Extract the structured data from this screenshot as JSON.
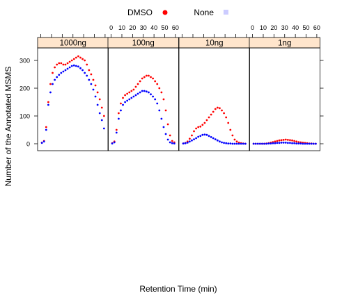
{
  "chart_data": {
    "type": "scatter",
    "title": "",
    "xlabel": "Retention Time (min)",
    "ylabel": "Number of the Annotated MSMS",
    "xlim": [
      -3,
      63
    ],
    "ylim": [
      -25,
      345
    ],
    "x_ticks": [
      0,
      10,
      20,
      30,
      40,
      50,
      60
    ],
    "y_ticks": [
      0,
      100,
      200,
      300
    ],
    "legend": {
      "placement": "top",
      "entries": [
        {
          "label": "DMSO",
          "color": "#ff0000",
          "marker": "filled-circle"
        },
        {
          "label": "None",
          "color": "#ccccff",
          "marker": "square"
        }
      ]
    },
    "panels": [
      {
        "label": "1000ng",
        "series": [
          {
            "name": "DMSO",
            "color": "#ff0000",
            "x": [
              1,
              3,
              5,
              7,
              9,
              11,
              13,
              15,
              17,
              19,
              21,
              23,
              25,
              27,
              29,
              31,
              33,
              35,
              37,
              39,
              41,
              43,
              45,
              47,
              49,
              51,
              53,
              55,
              57,
              59
            ],
            "y": [
              4,
              10,
              60,
              150,
              215,
              255,
              275,
              285,
              290,
              290,
              285,
              285,
              290,
              295,
              300,
              305,
              310,
              315,
              310,
              305,
              300,
              285,
              265,
              250,
              230,
              210,
              185,
              160,
              130,
              100
            ]
          },
          {
            "name": "None",
            "color": "#0000ff",
            "x": [
              1,
              3,
              5,
              7,
              9,
              11,
              13,
              15,
              17,
              19,
              21,
              23,
              25,
              27,
              29,
              31,
              33,
              35,
              37,
              39,
              41,
              43,
              45,
              47,
              49,
              51,
              53,
              55,
              57,
              59
            ],
            "y": [
              3,
              8,
              50,
              140,
              185,
              215,
              230,
              240,
              248,
              255,
              260,
              265,
              270,
              275,
              280,
              282,
              280,
              278,
              272,
              265,
              255,
              245,
              230,
              215,
              195,
              170,
              140,
              110,
              85,
              55
            ]
          }
        ]
      },
      {
        "label": "100ng",
        "series": [
          {
            "name": "DMSO",
            "color": "#ff0000",
            "x": [
              1,
              3,
              5,
              7,
              9,
              11,
              13,
              15,
              17,
              19,
              21,
              23,
              25,
              27,
              29,
              31,
              33,
              35,
              37,
              39,
              41,
              43,
              45,
              47,
              49,
              51,
              53,
              55,
              57,
              59
            ],
            "y": [
              2,
              8,
              50,
              110,
              145,
              165,
              175,
              180,
              185,
              190,
              195,
              205,
              215,
              225,
              235,
              240,
              245,
              245,
              240,
              235,
              225,
              215,
              200,
              185,
              160,
              120,
              70,
              30,
              10,
              5
            ]
          },
          {
            "name": "None",
            "color": "#0000ff",
            "x": [
              1,
              3,
              5,
              7,
              9,
              11,
              13,
              15,
              17,
              19,
              21,
              23,
              25,
              27,
              29,
              31,
              33,
              35,
              37,
              39,
              41,
              43,
              45,
              47,
              49,
              51,
              53,
              55,
              57,
              59
            ],
            "y": [
              1,
              5,
              40,
              90,
              120,
              140,
              150,
              155,
              160,
              165,
              170,
              175,
              180,
              185,
              190,
              190,
              188,
              185,
              178,
              170,
              160,
              145,
              120,
              90,
              60,
              35,
              15,
              5,
              2,
              1
            ]
          }
        ]
      },
      {
        "label": "10ng",
        "series": [
          {
            "name": "DMSO",
            "color": "#ff0000",
            "x": [
              1,
              3,
              5,
              7,
              9,
              11,
              13,
              15,
              17,
              19,
              21,
              23,
              25,
              27,
              29,
              31,
              33,
              35,
              37,
              39,
              41,
              43,
              45,
              47,
              49,
              51,
              53,
              55,
              57,
              59
            ],
            "y": [
              1,
              3,
              8,
              18,
              30,
              45,
              55,
              60,
              62,
              68,
              75,
              85,
              95,
              105,
              115,
              125,
              130,
              128,
              120,
              110,
              95,
              75,
              50,
              30,
              15,
              8,
              4,
              2,
              1,
              0
            ]
          },
          {
            "name": "None",
            "color": "#0000ff",
            "x": [
              1,
              3,
              5,
              7,
              9,
              11,
              13,
              15,
              17,
              19,
              21,
              23,
              25,
              27,
              29,
              31,
              33,
              35,
              37,
              39,
              41,
              43,
              45,
              47,
              49,
              51,
              53,
              55,
              57,
              59
            ],
            "y": [
              1,
              2,
              4,
              8,
              12,
              16,
              20,
              25,
              28,
              32,
              33,
              32,
              28,
              24,
              20,
              16,
              12,
              8,
              5,
              3,
              2,
              1,
              1,
              0,
              0,
              0,
              0,
              0,
              0,
              0
            ]
          }
        ]
      },
      {
        "label": "1ng",
        "series": [
          {
            "name": "DMSO",
            "color": "#ff0000",
            "x": [
              1,
              3,
              5,
              7,
              9,
              11,
              13,
              15,
              17,
              19,
              21,
              23,
              25,
              27,
              29,
              31,
              33,
              35,
              37,
              39,
              41,
              43,
              45,
              47,
              49,
              51,
              53,
              55,
              57,
              59
            ],
            "y": [
              0,
              0,
              0,
              0,
              0,
              0,
              1,
              2,
              4,
              6,
              8,
              10,
              12,
              13,
              14,
              15,
              14,
              13,
              12,
              10,
              8,
              6,
              5,
              4,
              3,
              2,
              1,
              1,
              0,
              0
            ]
          },
          {
            "name": "None",
            "color": "#0000ff",
            "x": [
              1,
              3,
              5,
              7,
              9,
              11,
              13,
              15,
              17,
              19,
              21,
              23,
              25,
              27,
              29,
              31,
              33,
              35,
              37,
              39,
              41,
              43,
              45,
              47,
              49,
              51,
              53,
              55,
              57,
              59
            ],
            "y": [
              0,
              0,
              0,
              0,
              0,
              0,
              0,
              1,
              1,
              2,
              2,
              3,
              3,
              4,
              4,
              4,
              3,
              3,
              2,
              2,
              1,
              1,
              1,
              0,
              0,
              0,
              0,
              0,
              0,
              0
            ]
          }
        ]
      }
    ]
  }
}
